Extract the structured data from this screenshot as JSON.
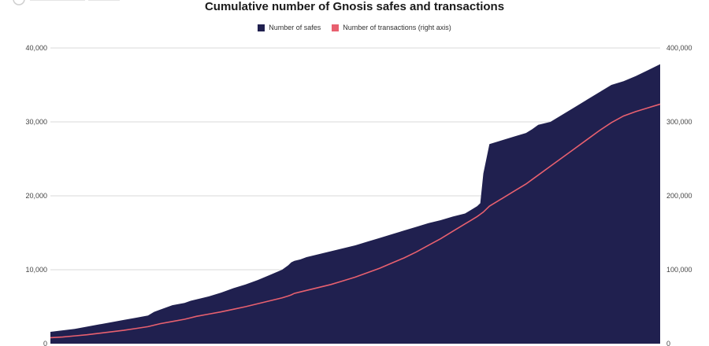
{
  "chart_data": {
    "type": "area",
    "title": "Cumulative number of Gnosis safes and transactions",
    "xlabel": "",
    "ylabel": "",
    "ylim": [
      0,
      40000
    ],
    "y2lim": [
      0,
      400000
    ],
    "y_ticks": [
      "0",
      "10,000",
      "20,000",
      "30,000",
      "40,000"
    ],
    "y2_ticks": [
      "0",
      "100,000",
      "200,000",
      "300,000",
      "400,000"
    ],
    "grid": true,
    "legend_position": "top-center",
    "x": [
      0,
      2,
      4,
      6,
      8,
      10,
      12,
      14,
      16,
      17,
      18,
      20,
      22,
      23,
      24,
      26,
      28,
      30,
      32,
      34,
      36,
      38,
      39,
      39.5,
      40,
      41,
      42,
      44,
      46,
      48,
      50,
      52,
      54,
      56,
      58,
      60,
      62,
      64,
      66,
      68,
      69,
      70,
      70.5,
      71,
      71.5,
      72,
      74,
      76,
      78,
      79,
      80,
      82,
      84,
      86,
      88,
      90,
      92,
      94,
      96,
      98,
      100
    ],
    "series": [
      {
        "name": "Number of safes",
        "axis": "left",
        "color": "#20204f",
        "values": [
          1600,
          1800,
          2000,
          2300,
          2600,
          2900,
          3200,
          3500,
          3800,
          4300,
          4600,
          5200,
          5500,
          5800,
          6000,
          6400,
          6900,
          7500,
          8000,
          8600,
          9300,
          10000,
          10600,
          11000,
          11200,
          11400,
          11700,
          12100,
          12500,
          12900,
          13300,
          13800,
          14300,
          14800,
          15300,
          15800,
          16300,
          16700,
          17200,
          17600,
          18100,
          18600,
          19000,
          23000,
          25000,
          27000,
          27500,
          28000,
          28500,
          29000,
          29600,
          30000,
          31000,
          32000,
          33000,
          34000,
          35000,
          35500,
          36200,
          37000,
          37800
        ]
      },
      {
        "name": "Number of transactions (right axis)",
        "axis": "right",
        "color": "#e8606f",
        "values": [
          8000,
          9000,
          10500,
          12000,
          14000,
          16000,
          18000,
          20500,
          23000,
          25000,
          27000,
          30000,
          33000,
          35000,
          37000,
          40000,
          43000,
          46500,
          50000,
          54000,
          58000,
          62000,
          64500,
          66000,
          68000,
          70000,
          72000,
          76000,
          80000,
          85000,
          90000,
          96000,
          102000,
          109000,
          116000,
          124000,
          133000,
          142000,
          152000,
          162000,
          167000,
          172000,
          175000,
          178000,
          182000,
          186000,
          196000,
          206000,
          216000,
          222000,
          228000,
          240000,
          252000,
          264000,
          276000,
          288000,
          299000,
          308000,
          314000,
          319000,
          324000
        ]
      }
    ]
  }
}
